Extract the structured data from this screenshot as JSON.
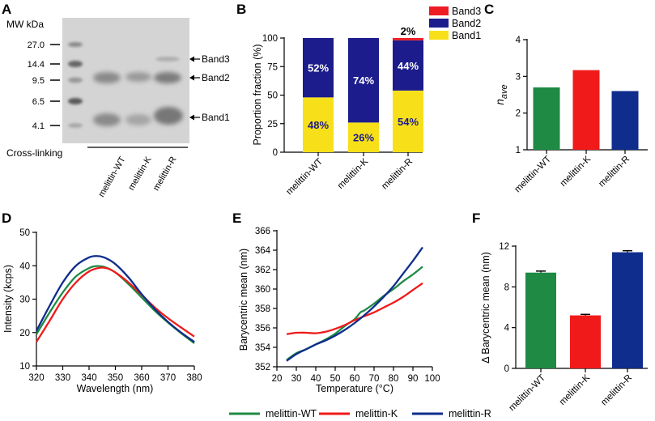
{
  "colors": {
    "wt": "#1e8a43",
    "k": "#f01a1a",
    "r": "#0f2d8c",
    "band1": "#f7e01a",
    "band2": "#1c1c8c",
    "band3": "#ee1c24",
    "gel_bg": "#d4d4d4",
    "gel_band": "#777777"
  },
  "legend": {
    "items": [
      {
        "name": "melittin-WT",
        "color": "#1e8a43"
      },
      {
        "name": "melittin-K",
        "color": "#f01a1a"
      },
      {
        "name": "melittin-R",
        "color": "#0f2d8c"
      }
    ]
  },
  "chart_data": [
    {
      "id": "A",
      "panel_label": "A",
      "type": "gel_image",
      "title": "MW kDa",
      "markers": [
        "27.0",
        "14.4",
        "9.5",
        "6.5",
        "4.1"
      ],
      "band_labels": [
        "Band3",
        "Band2",
        "Band1"
      ],
      "xlabel": "Cross-linking",
      "lanes": [
        "melittin-WT",
        "melittin-K",
        "melittin-R"
      ]
    },
    {
      "id": "B",
      "panel_label": "B",
      "type": "bar",
      "stacked": true,
      "categories": [
        "melittin-WT",
        "melittin-K",
        "melittin-R"
      ],
      "ylabel": "Proportion fraction (%)",
      "ylim": [
        0,
        100
      ],
      "yticks": [
        "0",
        "25",
        "50",
        "75",
        "100"
      ],
      "series": [
        {
          "name": "Band1",
          "values": [
            48,
            26,
            54
          ],
          "labels": [
            "48%",
            "26%",
            "54%"
          ]
        },
        {
          "name": "Band2",
          "values": [
            52,
            74,
            44
          ],
          "labels": [
            "52%",
            "74%",
            "44%"
          ]
        },
        {
          "name": "Band3",
          "values": [
            0,
            0,
            2
          ],
          "labels": [
            "",
            "",
            "2%"
          ]
        }
      ],
      "legend": [
        "Band3",
        "Band2",
        "Band1"
      ]
    },
    {
      "id": "C",
      "panel_label": "C",
      "type": "bar",
      "categories": [
        "melittin-WT",
        "melittin-K",
        "melittin-R"
      ],
      "values": [
        2.7,
        3.17,
        2.6
      ],
      "ylabel_main": "n",
      "ylabel_sub": "ave",
      "ylim": [
        1,
        4
      ],
      "yticks": [
        "1",
        "2",
        "3",
        "4"
      ]
    },
    {
      "id": "D",
      "panel_label": "D",
      "type": "line",
      "xlabel": "Wavelength (nm)",
      "ylabel": "Intensity (kcps)",
      "xlim": [
        320,
        380
      ],
      "ylim": [
        10,
        50
      ],
      "xticks": [
        "320",
        "330",
        "340",
        "350",
        "360",
        "370",
        "380"
      ],
      "yticks": [
        "10",
        "20",
        "30",
        "40",
        "50"
      ],
      "series": [
        {
          "name": "melittin-WT",
          "x": [
            320,
            325,
            330,
            335,
            340,
            343,
            346,
            350,
            355,
            360,
            365,
            370,
            375,
            380
          ],
          "y": [
            19.5,
            26,
            32,
            36.8,
            39.3,
            39.9,
            39.6,
            38,
            34.5,
            30.5,
            26.5,
            23,
            19.8,
            16.8
          ]
        },
        {
          "name": "melittin-K",
          "x": [
            320,
            325,
            330,
            335,
            340,
            344,
            347,
            350,
            355,
            360,
            365,
            370,
            375,
            380
          ],
          "y": [
            17.2,
            23.5,
            30,
            35,
            38.3,
            39.4,
            39.2,
            38,
            35,
            31.3,
            27.5,
            24.3,
            21.5,
            18.8
          ]
        },
        {
          "name": "melittin-R",
          "x": [
            320,
            325,
            330,
            335,
            340,
            343,
            346,
            350,
            355,
            360,
            365,
            370,
            375,
            380
          ],
          "y": [
            20.5,
            28,
            35,
            40,
            42.5,
            42.9,
            42.4,
            40.5,
            36.5,
            31.5,
            27,
            23.2,
            20,
            17.2
          ]
        }
      ]
    },
    {
      "id": "E",
      "panel_label": "E",
      "type": "line",
      "xlabel": "Temperature (°C)",
      "ylabel": "Barycentric mean (nm)",
      "xlim": [
        20,
        100
      ],
      "ylim": [
        352,
        366
      ],
      "xticks": [
        "20",
        "30",
        "40",
        "50",
        "60",
        "70",
        "80",
        "90",
        "100"
      ],
      "yticks": [
        "352",
        "354",
        "356",
        "358",
        "360",
        "362",
        "364",
        "366"
      ],
      "series": [
        {
          "name": "melittin-WT",
          "x": [
            25,
            30,
            35,
            40,
            45,
            50,
            55,
            60,
            63,
            65,
            70,
            75,
            80,
            85,
            90,
            95
          ],
          "y": [
            352.7,
            353.4,
            353.8,
            354.3,
            354.8,
            355.4,
            356.2,
            356.9,
            357.6,
            357.8,
            358.5,
            359.3,
            360.0,
            360.8,
            361.5,
            362.3
          ]
        },
        {
          "name": "melittin-K",
          "x": [
            25,
            30,
            35,
            40,
            45,
            50,
            55,
            60,
            65,
            70,
            75,
            80,
            85,
            90,
            95
          ],
          "y": [
            355.35,
            355.5,
            355.5,
            355.45,
            355.6,
            355.9,
            356.3,
            356.8,
            357.2,
            357.6,
            358.1,
            358.6,
            359.2,
            359.9,
            360.6
          ]
        },
        {
          "name": "melittin-R",
          "x": [
            25,
            30,
            35,
            40,
            45,
            50,
            55,
            60,
            65,
            70,
            75,
            80,
            85,
            90,
            95
          ],
          "y": [
            352.6,
            353.3,
            353.8,
            354.3,
            354.7,
            355.2,
            355.8,
            356.5,
            357.3,
            358.2,
            359.2,
            360.3,
            361.6,
            362.9,
            364.3
          ]
        }
      ]
    },
    {
      "id": "F",
      "panel_label": "F",
      "type": "bar",
      "categories": [
        "melittin-WT",
        "melittin-K",
        "melittin-R"
      ],
      "values": [
        9.4,
        5.2,
        11.4
      ],
      "errors": [
        0.15,
        0.1,
        0.15
      ],
      "ylabel": "Δ Barycentric mean (nm)",
      "ylim": [
        0,
        12
      ],
      "yticks": [
        "0",
        "4",
        "8",
        "12"
      ]
    }
  ]
}
